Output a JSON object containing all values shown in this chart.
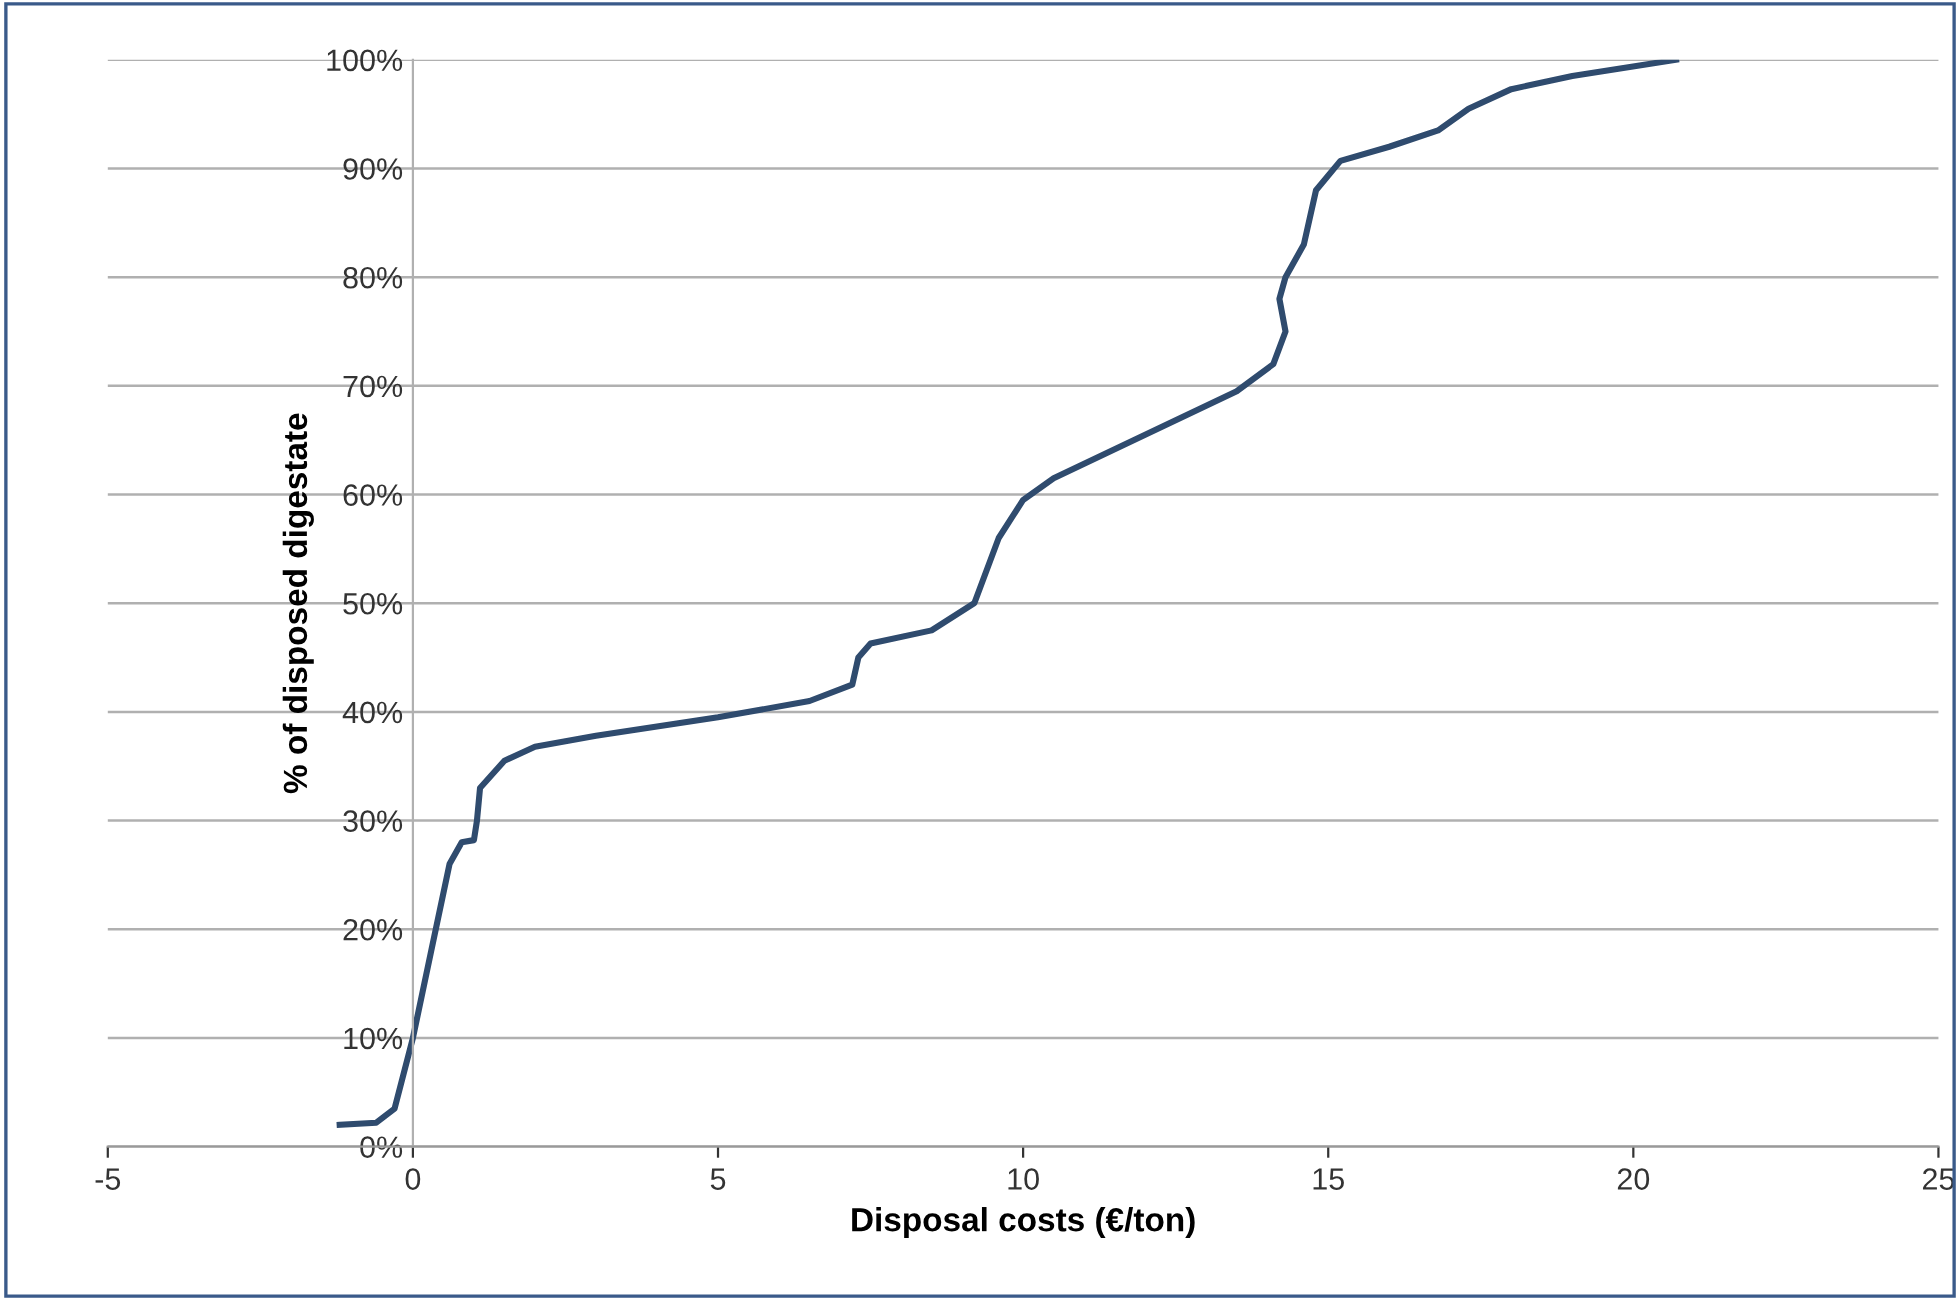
{
  "chart_data": {
    "type": "line",
    "xlabel": "Disposal costs (€/ton)",
    "ylabel": "% of disposed digestate",
    "xlim": [
      -5,
      25
    ],
    "xticks": [
      -5,
      0,
      5,
      10,
      15,
      20,
      25
    ],
    "ylim": [
      0,
      100
    ],
    "yticks": [
      {
        "value": 0,
        "label": "0%"
      },
      {
        "value": 10,
        "label": "10%"
      },
      {
        "value": 20,
        "label": "20%"
      },
      {
        "value": 30,
        "label": "30%"
      },
      {
        "value": 40,
        "label": "40%"
      },
      {
        "value": 50,
        "label": "50%"
      },
      {
        "value": 60,
        "label": "60%"
      },
      {
        "value": 70,
        "label": "70%"
      },
      {
        "value": 80,
        "label": "80%"
      },
      {
        "value": 90,
        "label": "90%"
      },
      {
        "value": 100,
        "label": "100%"
      }
    ],
    "grid": "y",
    "legend": false,
    "marker": "none",
    "line_style": "solid",
    "series": [
      {
        "color": "#2f4b6e",
        "x": [
          -1.2,
          -0.6,
          -0.3,
          0,
          0.3,
          0.6,
          0.8,
          1.0,
          1.05,
          1.1,
          1.5,
          2,
          3,
          5,
          6.5,
          7.2,
          7.3,
          7.5,
          8.5,
          9.2,
          9.6,
          10,
          10.5,
          12,
          13.5,
          14.1,
          14.3,
          14.2,
          14.3,
          14.6,
          14.8,
          15.2,
          16,
          16.8,
          17.3,
          18,
          19,
          20.7
        ],
        "values": [
          2,
          2.2,
          3.5,
          10,
          18,
          26,
          28,
          28.2,
          30,
          33,
          35.5,
          36.8,
          37.8,
          39.5,
          41,
          42.5,
          45,
          46.3,
          47.5,
          50,
          56,
          59.5,
          61.5,
          65.5,
          69.5,
          72,
          75,
          78,
          80,
          83,
          88,
          90.7,
          92,
          93.5,
          95.5,
          97.3,
          98.5,
          100
        ]
      }
    ]
  }
}
